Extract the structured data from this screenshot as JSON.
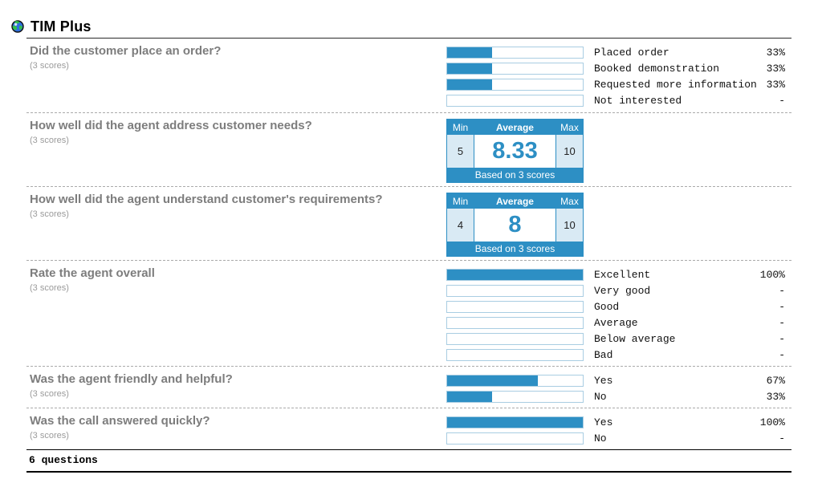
{
  "header": {
    "title": "TIM Plus",
    "icon": "globe-icon"
  },
  "colors": {
    "accent_blue": "#2D8FC4",
    "bar_border": "#A9CDE2",
    "cell_light_blue": "#D9EAF4",
    "title_gray": "#7D7D7D"
  },
  "stats_box": {
    "min_label": "Min",
    "avg_label": "Average",
    "max_label": "Max"
  },
  "questions": [
    {
      "title": "Did the customer place an order?",
      "scores_note": "(3 scores)",
      "type": "bars",
      "rows": [
        {
          "label": "Placed order",
          "percent_text": "33%",
          "fill": 33
        },
        {
          "label": "Booked demonstration",
          "percent_text": "33%",
          "fill": 33
        },
        {
          "label": "Requested more information",
          "percent_text": "33%",
          "fill": 33
        },
        {
          "label": "Not interested",
          "percent_text": "-",
          "fill": 0
        }
      ]
    },
    {
      "title": "How well did the agent address customer needs?",
      "scores_note": "(3 scores)",
      "type": "stats",
      "min": "5",
      "average": "8.33",
      "max": "10",
      "caption": "Based on 3 scores"
    },
    {
      "title": "How well did the agent understand customer's requirements?",
      "scores_note": "(3 scores)",
      "type": "stats",
      "min": "4",
      "average": "8",
      "max": "10",
      "caption": "Based on 3 scores"
    },
    {
      "title": "Rate the agent overall",
      "scores_note": "(3 scores)",
      "type": "bars",
      "rows": [
        {
          "label": "Excellent",
          "percent_text": "100%",
          "fill": 100
        },
        {
          "label": "Very good",
          "percent_text": "-",
          "fill": 0
        },
        {
          "label": "Good",
          "percent_text": "-",
          "fill": 0
        },
        {
          "label": "Average",
          "percent_text": "-",
          "fill": 0
        },
        {
          "label": "Below average",
          "percent_text": "-",
          "fill": 0
        },
        {
          "label": "Bad",
          "percent_text": "-",
          "fill": 0
        }
      ]
    },
    {
      "title": "Was the agent friendly and helpful?",
      "scores_note": "(3 scores)",
      "type": "bars",
      "rows": [
        {
          "label": "Yes",
          "percent_text": "67%",
          "fill": 67
        },
        {
          "label": "No",
          "percent_text": "33%",
          "fill": 33
        }
      ]
    },
    {
      "title": "Was the call answered quickly?",
      "scores_note": "(3 scores)",
      "type": "bars",
      "rows": [
        {
          "label": "Yes",
          "percent_text": "100%",
          "fill": 100
        },
        {
          "label": "No",
          "percent_text": "-",
          "fill": 0
        }
      ]
    }
  ],
  "footer": {
    "summary": "6 questions"
  },
  "chart_data": [
    {
      "type": "bar",
      "orientation": "horizontal",
      "title": "Did the customer place an order?",
      "subtitle": "(3 scores)",
      "categories": [
        "Placed order",
        "Booked demonstration",
        "Requested more information",
        "Not interested"
      ],
      "values": [
        33,
        33,
        33,
        null
      ],
      "unit": "%",
      "xlim": [
        0,
        100
      ],
      "grid": false,
      "legend_position": "none"
    },
    {
      "type": "table",
      "title": "How well did the agent address customer needs?",
      "subtitle": "(3 scores)",
      "min": 5,
      "average": 8.33,
      "max": 10,
      "note": "Based on 3 scores"
    },
    {
      "type": "table",
      "title": "How well did the agent understand customer's requirements?",
      "subtitle": "(3 scores)",
      "min": 4,
      "average": 8,
      "max": 10,
      "note": "Based on 3 scores"
    },
    {
      "type": "bar",
      "orientation": "horizontal",
      "title": "Rate the agent overall",
      "subtitle": "(3 scores)",
      "categories": [
        "Excellent",
        "Very good",
        "Good",
        "Average",
        "Below average",
        "Bad"
      ],
      "values": [
        100,
        null,
        null,
        null,
        null,
        null
      ],
      "unit": "%",
      "xlim": [
        0,
        100
      ],
      "grid": false,
      "legend_position": "none"
    },
    {
      "type": "bar",
      "orientation": "horizontal",
      "title": "Was the agent friendly and helpful?",
      "subtitle": "(3 scores)",
      "categories": [
        "Yes",
        "No"
      ],
      "values": [
        67,
        33
      ],
      "unit": "%",
      "xlim": [
        0,
        100
      ],
      "grid": false,
      "legend_position": "none"
    },
    {
      "type": "bar",
      "orientation": "horizontal",
      "title": "Was the call answered quickly?",
      "subtitle": "(3 scores)",
      "categories": [
        "Yes",
        "No"
      ],
      "values": [
        100,
        null
      ],
      "unit": "%",
      "xlim": [
        0,
        100
      ],
      "grid": false,
      "legend_position": "none"
    }
  ]
}
